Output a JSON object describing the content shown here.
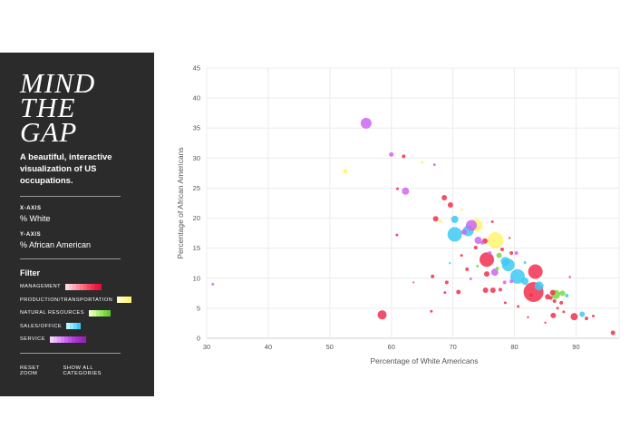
{
  "sidebar": {
    "logo": "MIND\nTHE\nGAP",
    "tagline": "A beautiful, interactive visualization of US occupations.",
    "x_axis_label": "X-AXIS",
    "x_axis_value": "% White",
    "y_axis_label": "Y-AXIS",
    "y_axis_value": "% African American",
    "filter_title": "Filter",
    "filters": [
      {
        "label": "MANAGEMENT",
        "colors": [
          "#ffd6dc",
          "#ffc0ca",
          "#ffa8b6",
          "#ff8fa1",
          "#ff778c",
          "#fb5d76",
          "#f74561",
          "#f2304f",
          "#ec1c3d",
          "#e61234"
        ]
      },
      {
        "label": "PRODUCTION/TRANSPORTATION",
        "colors": [
          "#fffcc4",
          "#fffaa8",
          "#fff88c",
          "#fff570"
        ]
      },
      {
        "label": "NATURAL RESOURCES",
        "colors": [
          "#e6ffc9",
          "#ccff99",
          "#b0f27a",
          "#94e65c",
          "#7ad943",
          "#64cc33"
        ]
      },
      {
        "label": "SALES/OFFICE",
        "colors": [
          "#bdf3ff",
          "#94e8ff",
          "#66d9ff",
          "#3ec9f5"
        ]
      },
      {
        "label": "SERVICE",
        "colors": [
          "#f5d0ff",
          "#edb5ff",
          "#e29aff",
          "#d880fc",
          "#cc66f2",
          "#c04fe8",
          "#b33ddb",
          "#a830d0",
          "#9e28c4",
          "#9622b8"
        ]
      }
    ],
    "reset_zoom": "RESET ZOOM",
    "show_all": "SHOW ALL CATEGORIES"
  },
  "chart_data": {
    "type": "scatter",
    "xlabel": "Percentage of White Americans",
    "ylabel": "Percentage of African Americans",
    "xlim": [
      30,
      97
    ],
    "ylim": [
      0,
      45
    ],
    "xticks": [
      30,
      40,
      50,
      60,
      70,
      80,
      90
    ],
    "yticks": [
      0,
      5,
      10,
      15,
      20,
      25,
      30,
      35,
      40,
      45
    ],
    "grid": true,
    "category_colors": {
      "management": "#f2304f",
      "production": "#fff570",
      "natural": "#7ad943",
      "sales": "#3ec9f5",
      "service": "#cc66f2"
    },
    "points": [
      {
        "x": 55.9,
        "y": 35.8,
        "s": 6,
        "c": "service"
      },
      {
        "x": 31.0,
        "y": 9.0,
        "s": 1.5,
        "c": "service"
      },
      {
        "x": 52.5,
        "y": 27.8,
        "s": 2.5,
        "c": "production"
      },
      {
        "x": 60.0,
        "y": 30.6,
        "s": 2.5,
        "c": "service"
      },
      {
        "x": 62.0,
        "y": 30.3,
        "s": 2,
        "c": "management"
      },
      {
        "x": 65.0,
        "y": 29.3,
        "s": 1.5,
        "c": "production"
      },
      {
        "x": 67.0,
        "y": 28.9,
        "s": 1.5,
        "c": "service"
      },
      {
        "x": 62.3,
        "y": 24.5,
        "s": 4,
        "c": "service"
      },
      {
        "x": 58.5,
        "y": 3.9,
        "s": 5,
        "c": "management"
      },
      {
        "x": 60.9,
        "y": 17.2,
        "s": 1.5,
        "c": "management"
      },
      {
        "x": 68.6,
        "y": 23.4,
        "s": 3,
        "c": "management"
      },
      {
        "x": 69.6,
        "y": 22.2,
        "s": 3,
        "c": "management"
      },
      {
        "x": 67.2,
        "y": 19.9,
        "s": 3,
        "c": "management"
      },
      {
        "x": 68.0,
        "y": 19.5,
        "s": 2,
        "c": "production"
      },
      {
        "x": 70.3,
        "y": 19.8,
        "s": 4,
        "c": "sales"
      },
      {
        "x": 70.3,
        "y": 17.3,
        "s": 8,
        "c": "sales"
      },
      {
        "x": 71.8,
        "y": 17.7,
        "s": 3,
        "c": "service"
      },
      {
        "x": 72.5,
        "y": 17.9,
        "s": 6,
        "c": "sales"
      },
      {
        "x": 73.0,
        "y": 18.8,
        "s": 6,
        "c": "service"
      },
      {
        "x": 73.8,
        "y": 18.8,
        "s": 7,
        "c": "production"
      },
      {
        "x": 74.1,
        "y": 16.3,
        "s": 4,
        "c": "service"
      },
      {
        "x": 76.9,
        "y": 16.3,
        "s": 9,
        "c": "production"
      },
      {
        "x": 75.2,
        "y": 16.2,
        "s": 3,
        "c": "management"
      },
      {
        "x": 76.0,
        "y": 14.2,
        "s": 2,
        "c": "service"
      },
      {
        "x": 75.5,
        "y": 13.1,
        "s": 8,
        "c": "management"
      },
      {
        "x": 77.5,
        "y": 13.8,
        "s": 3,
        "c": "natural"
      },
      {
        "x": 78.5,
        "y": 12.8,
        "s": 5,
        "c": "sales"
      },
      {
        "x": 79.0,
        "y": 12.2,
        "s": 7,
        "c": "sales"
      },
      {
        "x": 79.5,
        "y": 14.2,
        "s": 2,
        "c": "management"
      },
      {
        "x": 76.8,
        "y": 11.0,
        "s": 4,
        "c": "service"
      },
      {
        "x": 75.5,
        "y": 10.7,
        "s": 3,
        "c": "management"
      },
      {
        "x": 77.2,
        "y": 11.6,
        "s": 2,
        "c": "natural"
      },
      {
        "x": 80.5,
        "y": 10.3,
        "s": 8,
        "c": "sales"
      },
      {
        "x": 83.4,
        "y": 11.1,
        "s": 8,
        "c": "management"
      },
      {
        "x": 81.7,
        "y": 9.5,
        "s": 4,
        "c": "sales"
      },
      {
        "x": 84.0,
        "y": 8.7,
        "s": 5,
        "c": "sales"
      },
      {
        "x": 83.1,
        "y": 7.7,
        "s": 11,
        "c": "management"
      },
      {
        "x": 85.4,
        "y": 6.9,
        "s": 3,
        "c": "management"
      },
      {
        "x": 86.2,
        "y": 7.6,
        "s": 3,
        "c": "management"
      },
      {
        "x": 86.7,
        "y": 7.3,
        "s": 5,
        "c": "natural"
      },
      {
        "x": 87.8,
        "y": 7.5,
        "s": 3,
        "c": "natural"
      },
      {
        "x": 85.9,
        "y": 6.7,
        "s": 2,
        "c": "management"
      },
      {
        "x": 86.5,
        "y": 6.2,
        "s": 2,
        "c": "management"
      },
      {
        "x": 87.6,
        "y": 5.9,
        "s": 2,
        "c": "management"
      },
      {
        "x": 88.5,
        "y": 7.1,
        "s": 2,
        "c": "sales"
      },
      {
        "x": 89.7,
        "y": 3.6,
        "s": 4,
        "c": "management"
      },
      {
        "x": 91.0,
        "y": 4.0,
        "s": 3,
        "c": "sales"
      },
      {
        "x": 91.7,
        "y": 3.3,
        "s": 2,
        "c": "management"
      },
      {
        "x": 92.8,
        "y": 3.7,
        "s": 1.5,
        "c": "management"
      },
      {
        "x": 96.0,
        "y": 0.9,
        "s": 2.5,
        "c": "management"
      },
      {
        "x": 86.3,
        "y": 3.8,
        "s": 3,
        "c": "management"
      },
      {
        "x": 87.0,
        "y": 5.0,
        "s": 1.5,
        "c": "management"
      },
      {
        "x": 88.0,
        "y": 4.4,
        "s": 1.5,
        "c": "management"
      },
      {
        "x": 76.5,
        "y": 8.0,
        "s": 3,
        "c": "management"
      },
      {
        "x": 75.3,
        "y": 8.0,
        "s": 3,
        "c": "management"
      },
      {
        "x": 77.7,
        "y": 8.1,
        "s": 2,
        "c": "management"
      },
      {
        "x": 79.5,
        "y": 9.5,
        "s": 2,
        "c": "service"
      },
      {
        "x": 70.9,
        "y": 7.7,
        "s": 2.5,
        "c": "management"
      },
      {
        "x": 69.0,
        "y": 9.3,
        "s": 2,
        "c": "management"
      },
      {
        "x": 66.7,
        "y": 10.3,
        "s": 2,
        "c": "management"
      },
      {
        "x": 68.7,
        "y": 7.6,
        "s": 1.5,
        "c": "management"
      },
      {
        "x": 72.3,
        "y": 11.5,
        "s": 2,
        "c": "management"
      },
      {
        "x": 73.7,
        "y": 15.1,
        "s": 2,
        "c": "management"
      },
      {
        "x": 71.4,
        "y": 13.8,
        "s": 1.5,
        "c": "management"
      },
      {
        "x": 66.5,
        "y": 4.5,
        "s": 1.5,
        "c": "management"
      },
      {
        "x": 63.6,
        "y": 9.3,
        "s": 1,
        "c": "management"
      },
      {
        "x": 61.0,
        "y": 24.9,
        "s": 1.5,
        "c": "management"
      },
      {
        "x": 78.4,
        "y": 9.3,
        "s": 2,
        "c": "service"
      },
      {
        "x": 80.3,
        "y": 14.2,
        "s": 2,
        "c": "service"
      },
      {
        "x": 78.0,
        "y": 14.8,
        "s": 2,
        "c": "management"
      },
      {
        "x": 81.7,
        "y": 12.6,
        "s": 1.5,
        "c": "sales"
      },
      {
        "x": 82.7,
        "y": 7.2,
        "s": 2,
        "c": "management"
      },
      {
        "x": 78.5,
        "y": 5.9,
        "s": 1.5,
        "c": "management"
      },
      {
        "x": 80.6,
        "y": 5.3,
        "s": 1.5,
        "c": "management"
      },
      {
        "x": 74.0,
        "y": 12.0,
        "s": 1.5,
        "c": "natural"
      },
      {
        "x": 72.9,
        "y": 9.9,
        "s": 1.5,
        "c": "service"
      },
      {
        "x": 76.4,
        "y": 19.4,
        "s": 1.5,
        "c": "management"
      },
      {
        "x": 71.4,
        "y": 21.4,
        "s": 1.5,
        "c": "production"
      },
      {
        "x": 74.8,
        "y": 15.9,
        "s": 2,
        "c": "service"
      },
      {
        "x": 82.2,
        "y": 3.5,
        "s": 1.2,
        "c": "management"
      },
      {
        "x": 85.0,
        "y": 2.6,
        "s": 1.2,
        "c": "management"
      },
      {
        "x": 89.0,
        "y": 10.2,
        "s": 1.2,
        "c": "management"
      },
      {
        "x": 79.2,
        "y": 16.7,
        "s": 1.2,
        "c": "management"
      },
      {
        "x": 69.5,
        "y": 12.5,
        "s": 1.2,
        "c": "sales"
      }
    ]
  }
}
